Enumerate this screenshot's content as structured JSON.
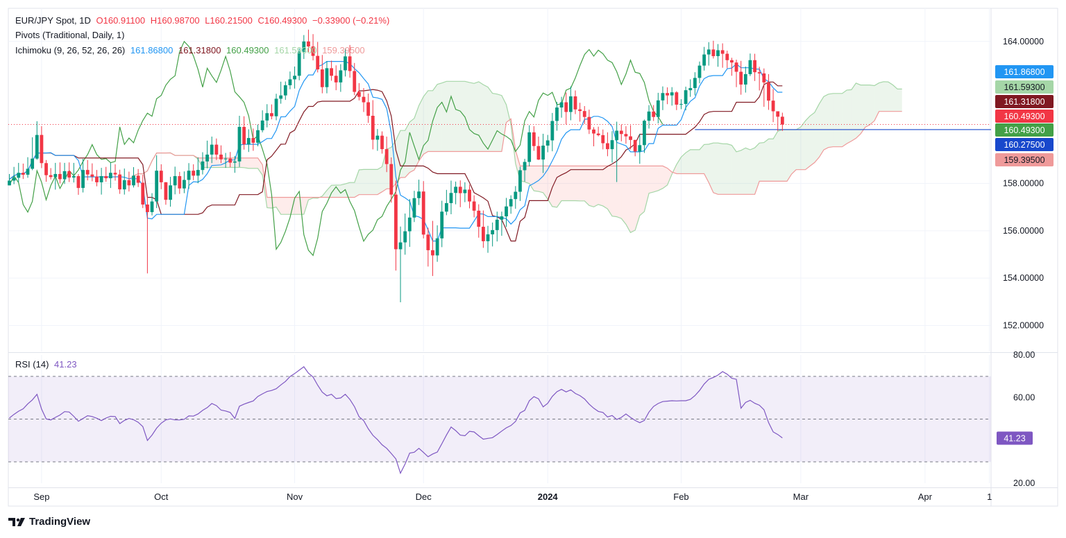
{
  "header": {
    "symbol": "EUR/JPY Spot, 1D",
    "open": "O160.91100",
    "high": "H160.98700",
    "low": "L160.21500",
    "close": "C160.49300",
    "change": "−0.33900 (−0.21%)",
    "pivots_label": "Pivots (Traditional, Daily, 1)",
    "ichimoku_label": "Ichimoku (9, 26, 52, 26, 26)",
    "ichimoku_values": [
      "161.86800",
      "161.31800",
      "160.49300",
      "161.59300",
      "159.39500"
    ],
    "rsi_label": "RSI (14)",
    "rsi_value": "41.23"
  },
  "brand": "TradingView",
  "colors": {
    "up": "#089981",
    "down": "#f23645",
    "conversion": "#2196f3",
    "base": "#801922",
    "lagging": "#43a047",
    "spanA": "#a5d6a7",
    "spanB": "#ef9a9a",
    "rsi": "#7e57c2",
    "pivot": "#1848cc"
  },
  "chart_data": [
    {
      "type": "candlestick",
      "title": "EUR/JPY Spot, 1D",
      "x_tick_labels": [
        "Sep",
        "Oct",
        "Nov",
        "Dec",
        "2024",
        "Feb",
        "Mar",
        "Apr",
        "1"
      ],
      "y_tick_labels": [
        "164.00000",
        "158.00000",
        "156.00000",
        "154.00000",
        "152.00000"
      ],
      "ylim": [
        150.9,
        165.4
      ],
      "last_close": 160.493,
      "price_labels": [
        {
          "text": "161.86800",
          "value": 161.868,
          "color": "#2196f3"
        },
        {
          "text": "161.59300",
          "value": 161.593,
          "color": "#a5d6a7"
        },
        {
          "text": "161.31800",
          "value": 161.318,
          "color": "#801922"
        },
        {
          "text": "160.49300",
          "value": 160.493,
          "color": "#f23645"
        },
        {
          "text": "160.49300",
          "value": 160.493,
          "color": "#43a047"
        },
        {
          "text": "160.27500",
          "value": 160.275,
          "color": "#1848cc"
        },
        {
          "text": "159.39500",
          "value": 159.395,
          "color": "#ef9a9a"
        }
      ],
      "pivot_level": 160.275,
      "close": [
        158.12,
        158.24,
        158.45,
        158.37,
        158.62,
        159.05,
        160.05,
        158.86,
        158.35,
        158.27,
        158.4,
        158.18,
        158.52,
        158.25,
        158.31,
        157.81,
        158.57,
        158.38,
        158.29,
        158.05,
        158.31,
        158.22,
        158.45,
        158.38,
        157.75,
        158.14,
        157.92,
        158.33,
        158.03,
        157.11,
        156.79,
        157.24,
        158.54,
        158.05,
        157.31,
        157.92,
        158.31,
        157.79,
        158.15,
        158.54,
        158.33,
        158.57,
        158.93,
        159.22,
        159.64,
        159.22,
        159.02,
        159.05,
        158.88,
        158.93,
        160.39,
        159.65,
        159.92,
        159.72,
        160.25,
        160.66,
        160.97,
        160.84,
        161.58,
        161.72,
        162.15,
        162.4,
        162.55,
        163.57,
        164.0,
        163.79,
        163.39,
        162.82,
        162.07,
        162.87,
        162.55,
        162.27,
        162.78,
        163.37,
        162.75,
        161.87,
        161.66,
        161.43,
        160.86,
        159.85,
        160.02,
        159.45,
        158.82,
        157.53,
        155.22,
        155.51,
        155.98,
        156.56,
        157.38,
        157.66,
        155.84,
        155.18,
        154.96,
        155.68,
        156.81,
        157.17,
        157.6,
        157.86,
        157.59,
        157.74,
        157.24,
        156.85,
        156.17,
        155.56,
        155.85,
        156.03,
        156.47,
        156.61,
        157.03,
        157.34,
        157.65,
        158.56,
        158.91,
        160.16,
        159.58,
        159.01,
        159.6,
        159.82,
        160.64,
        161.21,
        161.43,
        161.02,
        161.68,
        161.13,
        161.06,
        160.81,
        160.28,
        160.11,
        160.04,
        159.7,
        159.45,
        159.83,
        160.23,
        160.09,
        159.99,
        159.84,
        159.35,
        159.62,
        160.65,
        161.04,
        160.81,
        161.51,
        161.82,
        161.72,
        161.85,
        161.33,
        161.36,
        161.94,
        162.03,
        162.46,
        162.98,
        163.45,
        163.66,
        163.38,
        163.63,
        163.48,
        163.21,
        163.11,
        162.72,
        162.18,
        162.62,
        163.21,
        162.7,
        162.65,
        162.27,
        161.5,
        161.05,
        160.82,
        160.49
      ],
      "high": [
        158.4,
        158.7,
        158.87,
        158.84,
        159.11,
        159.95,
        160.63,
        160.42,
        158.99,
        158.65,
        158.87,
        158.89,
        158.87,
        158.89,
        158.87,
        158.4,
        159.04,
        158.99,
        158.85,
        158.57,
        158.66,
        158.7,
        158.87,
        158.81,
        158.58,
        158.63,
        158.5,
        158.69,
        158.61,
        158.37,
        157.5,
        157.59,
        159.19,
        158.81,
        158.06,
        158.28,
        158.71,
        158.49,
        158.51,
        158.86,
        158.81,
        159.1,
        159.32,
        159.81,
        159.98,
        159.9,
        159.61,
        159.29,
        159.33,
        159.16,
        160.86,
        160.84,
        160.29,
        160.32,
        160.49,
        161.09,
        161.35,
        161.34,
        161.79,
        162.3,
        162.31,
        162.73,
        162.94,
        163.71,
        164.27,
        164.5,
        164.31,
        163.98,
        163.43,
        163.17,
        163.19,
        162.99,
        163.04,
        163.7,
        163.85,
        163.09,
        162.24,
        162.03,
        161.8,
        161.52,
        160.3,
        160.2,
        159.98,
        159.1,
        158.12,
        156.18,
        156.73,
        157.34,
        157.69,
        158.16,
        158.1,
        156.13,
        156.42,
        156.23,
        157.27,
        157.73,
        158.12,
        158.08,
        158.13,
        158.05,
        157.95,
        157.5,
        157.12,
        156.86,
        156.21,
        156.35,
        156.81,
        156.81,
        157.39,
        157.5,
        157.89,
        158.71,
        159.04,
        160.46,
        160.42,
        159.98,
        160.1,
        160.05,
        160.98,
        161.44,
        161.66,
        161.84,
        162.1,
        161.93,
        161.41,
        161.27,
        161.12,
        160.38,
        160.4,
        160.28,
        160.16,
        160.21,
        160.61,
        160.49,
        160.42,
        160.46,
        159.84,
        160.1,
        160.7,
        161.31,
        161.31,
        161.83,
        162.1,
        162.06,
        162.07,
        161.9,
        161.56,
        162.09,
        162.4,
        162.7,
        163.15,
        163.77,
        163.97,
        164.03,
        163.89,
        163.92,
        163.61,
        163.31,
        163.23,
        163.18,
        162.94,
        163.49,
        163.48,
        162.93,
        162.86,
        162.62,
        161.99,
        161.03,
        160.99
      ],
      "low": [
        157.95,
        157.97,
        158.05,
        158.19,
        158.24,
        158.56,
        159.0,
        158.65,
        158.07,
        158.17,
        157.74,
        158.0,
        157.98,
        158.06,
        158.04,
        157.52,
        157.62,
        158.13,
        158.09,
        157.88,
        157.53,
        158.07,
        157.81,
        158.12,
        157.56,
        157.53,
        157.66,
        157.83,
        157.85,
        156.96,
        154.2,
        156.65,
        156.96,
        157.76,
        157.1,
        157.02,
        157.54,
        157.56,
        157.59,
        157.77,
        158.14,
        158.01,
        158.38,
        158.64,
        158.86,
        158.99,
        158.86,
        158.66,
        158.69,
        158.45,
        158.7,
        159.43,
        159.33,
        159.38,
        159.57,
        160.16,
        160.37,
        160.71,
        160.67,
        161.37,
        161.53,
        161.98,
        162.01,
        162.36,
        163.26,
        163.55,
        163.2,
        162.69,
        161.81,
        161.81,
        162.34,
        161.94,
        161.87,
        162.52,
        162.47,
        161.73,
        161.51,
        161.02,
        160.56,
        159.44,
        159.38,
        159.26,
        158.48,
        157.19,
        154.32,
        152.98,
        154.99,
        155.32,
        156.37,
        157.09,
        155.68,
        154.49,
        154.09,
        154.69,
        155.31,
        156.66,
        156.7,
        157.12,
        157.0,
        157.21,
        156.95,
        156.57,
        155.71,
        155.28,
        155.07,
        155.34,
        155.55,
        155.79,
        156.16,
        156.72,
        156.93,
        157.26,
        158.08,
        158.72,
        159.38,
        158.99,
        158.44,
        159.32,
        159.36,
        160.23,
        160.78,
        160.49,
        160.67,
        160.93,
        160.61,
        160.51,
        160.09,
        159.57,
        159.99,
        159.44,
        159.15,
        158.88,
        158.06,
        159.78,
        159.68,
        159.44,
        159.15,
        158.83,
        159.29,
        160.32,
        160.64,
        160.54,
        161.1,
        161.35,
        161.29,
        161.1,
        161.14,
        161.09,
        161.66,
        161.72,
        162.23,
        162.77,
        162.98,
        163.28,
        162.93,
        162.89,
        162.87,
        162.55,
        162.07,
        161.75,
        161.84,
        162.54,
        162.33,
        161.93,
        161.24,
        161.11,
        160.59,
        160.22,
        160.22
      ]
    },
    {
      "type": "line",
      "title": "RSI (14)",
      "y_tick_labels": [
        "80.00",
        "60.00",
        "20.00"
      ],
      "ylim": [
        20,
        80
      ],
      "bands": [
        70,
        50,
        30
      ],
      "last_value": 41.23,
      "values": [
        50.5,
        52.2,
        53.7,
        54.8,
        57.1,
        59.0,
        61.6,
        54.7,
        50.1,
        49.6,
        50.8,
        51.9,
        53.5,
        53.3,
        51.3,
        49.0,
        50.3,
        51.6,
        51.2,
        50.4,
        49.3,
        50.5,
        51.3,
        51.2,
        47.9,
        49.4,
        50.3,
        49.7,
        48.5,
        46.5,
        40.0,
        42.5,
        45.8,
        48.1,
        49.6,
        50.1,
        49.6,
        49.6,
        49.9,
        51.5,
        51.4,
        52.4,
        54.1,
        55.4,
        57.3,
        56.3,
        54.2,
        53.8,
        53.1,
        50.3,
        56.0,
        57.0,
        57.8,
        58.5,
        60.6,
        61.8,
        62.9,
        63.4,
        64.2,
        66.0,
        67.6,
        69.9,
        71.3,
        72.9,
        74.5,
        71.5,
        69.7,
        65.9,
        62.6,
        60.9,
        61.6,
        59.6,
        59.9,
        61.6,
        59.2,
        55.8,
        51.1,
        49.3,
        45.5,
        42.4,
        40.4,
        38.0,
        36.3,
        33.9,
        31.4,
        24.7,
        29.0,
        34.1,
        34.5,
        36.3,
        34.4,
        32.4,
        33.7,
        34.6,
        38.5,
        42.6,
        46.3,
        44.6,
        42.5,
        42.2,
        44.3,
        44.0,
        42.2,
        40.6,
        41.0,
        41.3,
        42.8,
        44.4,
        45.9,
        47.0,
        48.9,
        52.9,
        54.1,
        58.6,
        60.5,
        59.5,
        55.7,
        57.4,
        60.6,
        62.8,
        63.9,
        62.7,
        63.7,
        62.0,
        61.0,
        59.4,
        57.0,
        55.1,
        53.6,
        53.1,
        51.0,
        51.7,
        49.8,
        50.8,
        52.4,
        50.8,
        49.4,
        48.3,
        49.4,
        53.3,
        55.9,
        57.3,
        58.2,
        58.4,
        58.6,
        58.5,
        58.6,
        58.6,
        59.2,
        61.0,
        63.4,
        66.4,
        68.6,
        69.5,
        70.6,
        72.2,
        71.0,
        69.1,
        68.6,
        55.1,
        57.8,
        58.8,
        57.4,
        56.5,
        54.4,
        48.3,
        44.0,
        42.8,
        41.2
      ]
    }
  ]
}
